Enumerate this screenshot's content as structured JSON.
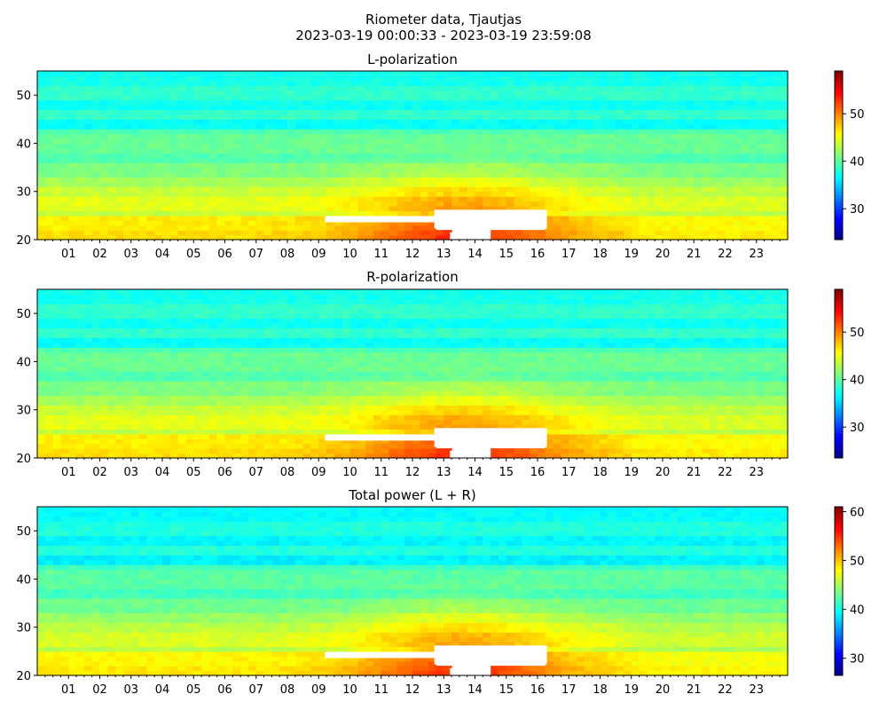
{
  "suptitle": {
    "line1": "Riometer data, Tjautjas",
    "line2": "2023-03-19 00:00:33 - 2023-03-19 23:59:08"
  },
  "chart_data": [
    {
      "type": "heatmap",
      "title": "L-polarization",
      "xlabel": "",
      "ylabel": "",
      "xlim": [
        0,
        24
      ],
      "ylim": [
        20,
        55
      ],
      "x_ticks": [
        "01",
        "02",
        "03",
        "04",
        "05",
        "06",
        "07",
        "08",
        "09",
        "10",
        "11",
        "12",
        "13",
        "14",
        "15",
        "16",
        "17",
        "18",
        "19",
        "20",
        "21",
        "22",
        "23"
      ],
      "y_ticks": [
        20,
        30,
        40,
        50
      ],
      "colorbar": {
        "colormap": "jet",
        "range": [
          23.5,
          59
        ],
        "ticks": [
          30,
          40,
          50
        ]
      },
      "color_min": 23.5,
      "color_max": 59,
      "saturation": 49
    },
    {
      "type": "heatmap",
      "title": "R-polarization",
      "xlabel": "",
      "ylabel": "",
      "xlim": [
        0,
        24
      ],
      "ylim": [
        20,
        55
      ],
      "x_ticks": [
        "01",
        "02",
        "03",
        "04",
        "05",
        "06",
        "07",
        "08",
        "09",
        "10",
        "11",
        "12",
        "13",
        "14",
        "15",
        "16",
        "17",
        "18",
        "19",
        "20",
        "21",
        "22",
        "23"
      ],
      "y_ticks": [
        20,
        30,
        40,
        50
      ],
      "colorbar": {
        "colormap": "jet",
        "range": [
          23.5,
          59
        ],
        "ticks": [
          30,
          40,
          50
        ]
      },
      "color_min": 23.5,
      "color_max": 59,
      "saturation": 49
    },
    {
      "type": "heatmap",
      "title": "Total power (L + R)",
      "xlabel": "",
      "ylabel": "",
      "xlim": [
        0,
        24
      ],
      "ylim": [
        20,
        55
      ],
      "x_ticks": [
        "01",
        "02",
        "03",
        "04",
        "05",
        "06",
        "07",
        "08",
        "09",
        "10",
        "11",
        "12",
        "13",
        "14",
        "15",
        "16",
        "17",
        "18",
        "19",
        "20",
        "21",
        "22",
        "23"
      ],
      "y_ticks": [
        20,
        30,
        40,
        50
      ],
      "colorbar": {
        "colormap": "jet",
        "range": [
          26.5,
          61
        ],
        "ticks": [
          30,
          40,
          50,
          60
        ]
      },
      "color_min": 26.5,
      "color_max": 61,
      "saturation": 51
    }
  ]
}
